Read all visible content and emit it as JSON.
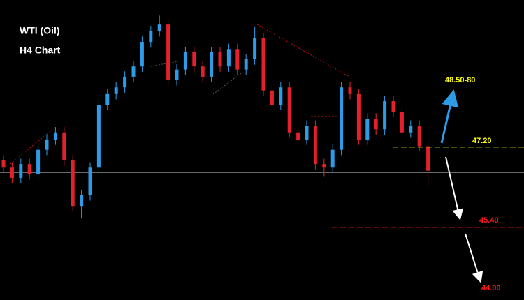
{
  "chart_data": {
    "type": "candlestick",
    "title": "WTI (Oil)",
    "subtitle": "H4 Chart",
    "ylim": [
      43.77,
      50.5
    ],
    "up_color": "#2e9be6",
    "down_color": "#e5202a",
    "open": [
      46.9,
      46.74,
      46.51,
      46.82,
      46.59,
      47.14,
      47.37,
      47.53,
      46.9,
      45.88,
      46.12,
      46.74,
      48.15,
      48.39,
      48.54,
      48.78,
      49.01,
      49.56,
      49.8,
      49.95,
      48.7,
      48.94,
      49.33,
      49.01,
      48.78,
      49.33,
      49.01,
      49.4,
      48.94,
      49.17,
      49.64,
      48.47,
      48.15,
      48.54,
      47.53,
      47.37,
      47.68,
      46.82,
      46.74,
      47.14,
      48.54,
      48.39,
      47.37,
      47.84,
      47.6,
      48.23,
      47.99,
      47.53,
      47.68,
      47.22
    ],
    "high": [
      47.02,
      46.86,
      46.94,
      46.94,
      47.26,
      47.49,
      47.65,
      47.65,
      47.02,
      46.24,
      46.86,
      48.27,
      48.51,
      48.66,
      48.9,
      49.13,
      49.68,
      49.92,
      50.15,
      50.07,
      49.06,
      49.45,
      49.45,
      49.13,
      49.45,
      49.45,
      49.52,
      49.52,
      49.29,
      49.9,
      49.76,
      48.59,
      48.66,
      48.66,
      47.65,
      47.8,
      47.8,
      46.94,
      47.26,
      48.66,
      48.66,
      48.51,
      47.96,
      47.96,
      48.35,
      48.35,
      48.11,
      47.8,
      47.8,
      47.34
    ],
    "low": [
      46.62,
      46.39,
      46.39,
      46.47,
      46.47,
      47.02,
      47.25,
      46.78,
      45.76,
      45.6,
      46.0,
      46.62,
      48.03,
      48.27,
      48.42,
      48.66,
      48.89,
      49.44,
      49.68,
      48.58,
      48.58,
      48.82,
      48.89,
      48.66,
      48.66,
      48.89,
      48.89,
      48.82,
      48.82,
      49.05,
      48.35,
      48.03,
      48.03,
      47.41,
      47.25,
      47.25,
      46.7,
      46.55,
      46.62,
      47.02,
      48.27,
      47.25,
      47.25,
      47.48,
      47.48,
      47.87,
      47.41,
      47.41,
      47.1,
      46.3
    ],
    "close": [
      46.74,
      46.51,
      46.82,
      46.59,
      47.14,
      47.37,
      47.53,
      46.9,
      45.88,
      46.12,
      46.74,
      48.15,
      48.39,
      48.54,
      48.78,
      49.01,
      49.56,
      49.8,
      49.95,
      48.7,
      48.94,
      49.33,
      49.01,
      48.78,
      49.33,
      49.01,
      49.4,
      48.94,
      49.17,
      49.64,
      48.47,
      48.15,
      48.54,
      47.53,
      47.37,
      47.68,
      46.82,
      46.74,
      47.14,
      48.54,
      48.39,
      47.37,
      47.84,
      47.6,
      48.23,
      47.99,
      47.53,
      47.68,
      47.22,
      46.67
    ],
    "current_price": 46.63,
    "current_price_color": "#8c8c8c",
    "levels": [
      {
        "value": 47.2,
        "label": "47.20",
        "color": "#ffff00",
        "line_color": "#9a9a00"
      },
      {
        "value": 45.4,
        "label": "45.40",
        "color": "#ff1a1a",
        "line_color": "#c01010"
      },
      {
        "value": 44.0,
        "label": "44.00",
        "color": "#ff1a1a"
      }
    ],
    "target_label": "48.50-80",
    "target_color": "#ffff00"
  }
}
